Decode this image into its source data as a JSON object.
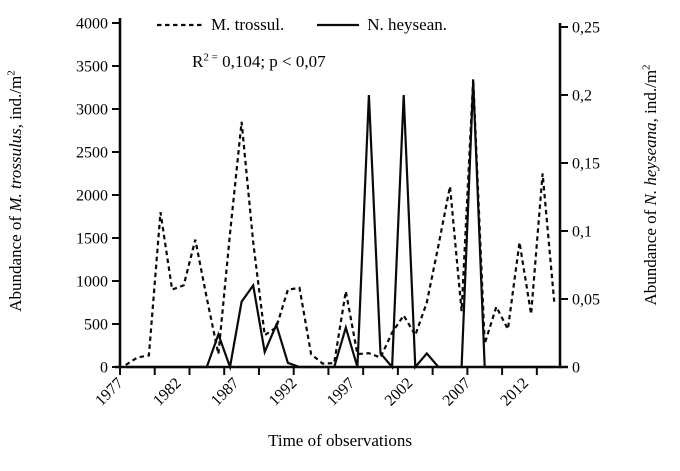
{
  "colors": {
    "background": "#ffffff",
    "line": "#0a0a0a",
    "text": "#000000"
  },
  "legend": {
    "items": [
      {
        "label": "M. trossul.",
        "line_style": "dashed"
      },
      {
        "label": "N. heysean.",
        "line_style": "solid"
      }
    ]
  },
  "annotation": {
    "r_base": "R",
    "r_sup": "2 =",
    "rest": " 0,104; p < 0,07"
  },
  "titles": {
    "left": {
      "prefix": "Abundance of ",
      "species": "M. trossulus",
      "suffix": ", ind./m",
      "sup": "2"
    },
    "right": {
      "prefix": "Abundance of ",
      "species": "N. heyseana",
      "suffix": ", ind./m",
      "sup": "2"
    },
    "x": "Time of observations"
  },
  "chart_data": {
    "type": "line",
    "title": "",
    "xlabel": "Time of observations",
    "x": [
      1977,
      1978,
      1979,
      1980,
      1981,
      1982,
      1983,
      1984,
      1985,
      1986,
      1987,
      1988,
      1989,
      1990,
      1991,
      1992,
      1993,
      1994,
      1995,
      1996,
      1997,
      1998,
      1999,
      2000,
      2001,
      2002,
      2003,
      2004,
      2005,
      2006,
      2007,
      2008,
      2009,
      2010,
      2011,
      2012,
      2013,
      2014
    ],
    "series": [
      {
        "name": "M. trossul.",
        "axis": "left",
        "line_style": "dashed",
        "color": "#0a0a0a",
        "values": [
          25,
          110,
          135,
          1800,
          900,
          950,
          1480,
          800,
          150,
          1550,
          2850,
          1450,
          370,
          460,
          900,
          920,
          150,
          40,
          45,
          880,
          150,
          160,
          110,
          400,
          600,
          370,
          750,
          1410,
          2100,
          650,
          3350,
          270,
          700,
          440,
          1450,
          615,
          2250,
          760
        ]
      },
      {
        "name": "N. heysean.",
        "axis": "right",
        "line_style": "solid",
        "color": "#0a0a0a",
        "values": [
          0,
          0,
          0,
          0,
          0,
          0,
          0,
          0,
          0.024,
          0,
          0.048,
          0.06,
          0.011,
          0.031,
          0.003,
          0,
          0,
          0,
          0,
          0.029,
          0,
          0.2,
          0.01,
          0,
          0.2,
          0,
          0.01,
          0,
          0,
          0,
          0.21,
          0,
          0,
          0,
          0,
          0,
          0,
          0
        ]
      }
    ],
    "left_axis": {
      "label": "Abundance of M. trossulus, ind./m2",
      "min": 0,
      "max": 4000,
      "tick_values": [
        0,
        500,
        1000,
        1500,
        2000,
        2500,
        3000,
        3500,
        4000
      ],
      "tick_labels": [
        "0",
        "500",
        "1000",
        "1500",
        "2000",
        "2500",
        "3000",
        "3500",
        "4000"
      ]
    },
    "right_axis": {
      "label": "Abundance of N. heyseana, ind./m2",
      "min": 0,
      "max": 0.25,
      "tick_values": [
        0,
        0.05,
        0.1,
        0.15,
        0.2,
        0.25
      ],
      "tick_labels": [
        "0",
        "0,05",
        "0,1",
        "0,15",
        "0,2",
        "0,25"
      ]
    },
    "x_axis": {
      "tick_years": [
        1977,
        1980,
        1983,
        1986,
        1989,
        1992,
        1995,
        1998,
        2001,
        2004,
        2007,
        2010,
        2013
      ],
      "label_years": [
        1977,
        1982,
        1987,
        1992,
        1997,
        2002,
        2007,
        2012
      ]
    },
    "annotation": "R2 = 0,104; p < 0,07",
    "legend_position": "top",
    "grid": false
  }
}
